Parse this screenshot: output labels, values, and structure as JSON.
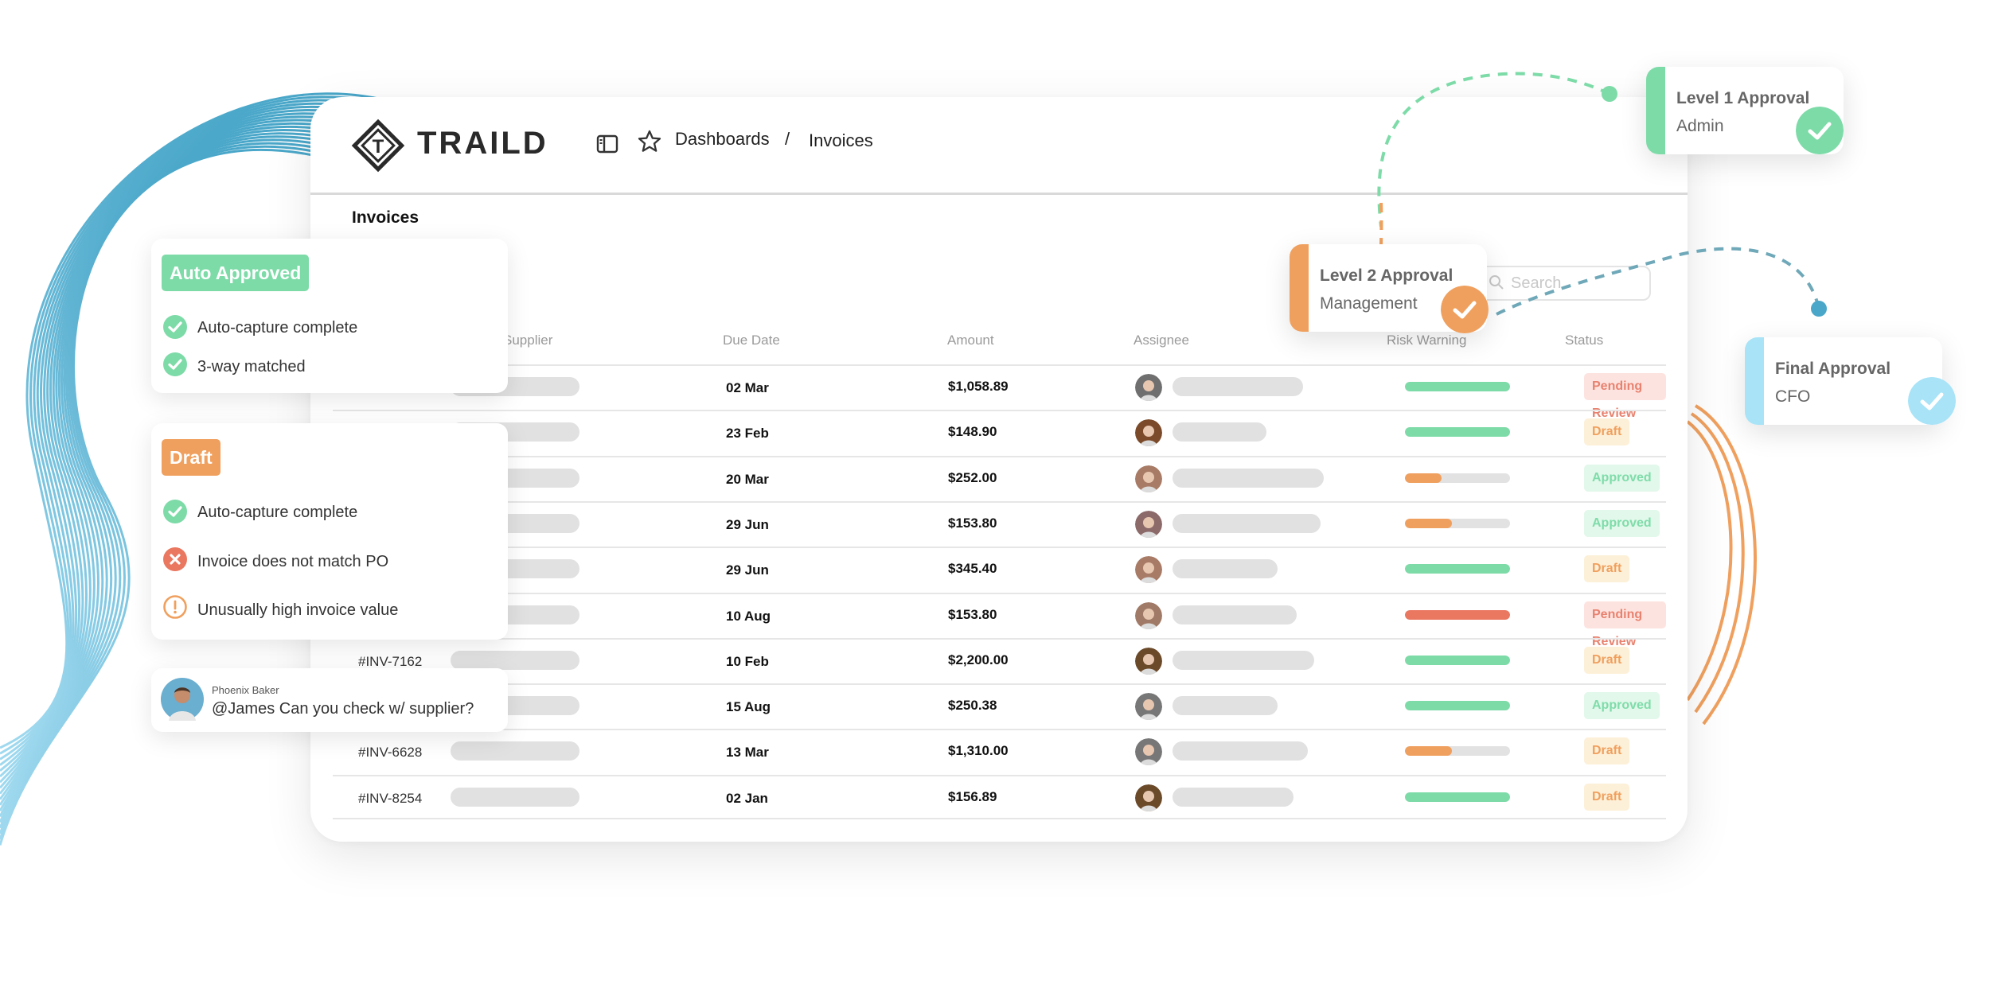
{
  "brand": {
    "name": "TRAILD",
    "logo_letter": "T"
  },
  "breadcrumb": {
    "item1": "Dashboards",
    "separator": "/",
    "item2": "Invoices"
  },
  "page": {
    "title": "Invoices"
  },
  "search": {
    "placeholder": "Search"
  },
  "table": {
    "headers": {
      "supplier": "Supplier",
      "due": "Due Date",
      "amount": "Amount",
      "assignee": "Assignee",
      "risk": "Risk Warning",
      "status": "Status"
    },
    "rows": [
      {
        "invoice": "",
        "due": "02 Mar",
        "amount": "$1,058.89",
        "risk": 1.0,
        "risk_color": "#7ddba8",
        "status": "Pending Review"
      },
      {
        "invoice": "",
        "due": "23 Feb",
        "amount": "$148.90",
        "risk": 1.0,
        "risk_color": "#7ddba8",
        "status": "Draft"
      },
      {
        "invoice": "",
        "due": "20 Mar",
        "amount": "$252.00",
        "risk": 0.35,
        "risk_color": "#f0a05e",
        "status": "Approved"
      },
      {
        "invoice": "",
        "due": "29 Jun",
        "amount": "$153.80",
        "risk": 0.45,
        "risk_color": "#f0a05e",
        "status": "Approved"
      },
      {
        "invoice": "",
        "due": "29 Jun",
        "amount": "$345.40",
        "risk": 1.0,
        "risk_color": "#7ddba8",
        "status": "Draft"
      },
      {
        "invoice": "",
        "due": "10 Aug",
        "amount": "$153.80",
        "risk": 1.0,
        "risk_color": "#ea7760",
        "status": "Pending Review"
      },
      {
        "invoice": "#INV-7162",
        "due": "10 Feb",
        "amount": "$2,200.00",
        "risk": 1.0,
        "risk_color": "#7ddba8",
        "status": "Draft"
      },
      {
        "invoice": "",
        "due": "15 Aug",
        "amount": "$250.38",
        "risk": 1.0,
        "risk_color": "#7ddba8",
        "status": "Approved"
      },
      {
        "invoice": "#INV-6628",
        "due": "13 Mar",
        "amount": "$1,310.00",
        "risk": 0.45,
        "risk_color": "#f0a05e",
        "status": "Draft"
      },
      {
        "invoice": "#INV-8254",
        "due": "02 Jan",
        "amount": "$156.89",
        "risk": 1.0,
        "risk_color": "#7ddba8",
        "status": "Draft"
      }
    ]
  },
  "status_colors": {
    "Pending Review": {
      "bg": "#fde3df",
      "fg": "#e8826f"
    },
    "Draft": {
      "bg": "#fdf0d8",
      "fg": "#f0a05e"
    },
    "Approved": {
      "bg": "#e2f8ea",
      "fg": "#7fdcaa"
    }
  },
  "auto_approved_card": {
    "tag": "Auto Approved",
    "items": [
      "Auto-capture complete",
      "3-way matched"
    ]
  },
  "draft_card": {
    "tag": "Draft",
    "items": [
      "Auto-capture complete",
      "Invoice does not match PO",
      "Unusually high invoice value"
    ]
  },
  "comment": {
    "author": "Phoenix Baker",
    "text": "@James Can you check w/ supplier?"
  },
  "approvals": {
    "level1": {
      "title": "Level 1 Approval",
      "sub": "Admin"
    },
    "level2": {
      "title": "Level 2 Approval",
      "sub": "Management"
    },
    "final": {
      "title": "Final Approval",
      "sub": "CFO"
    }
  },
  "colors": {
    "green": "#7ddba8",
    "orange": "#f0a05e",
    "blue": "#a8e3f7",
    "red": "#ea7760"
  }
}
